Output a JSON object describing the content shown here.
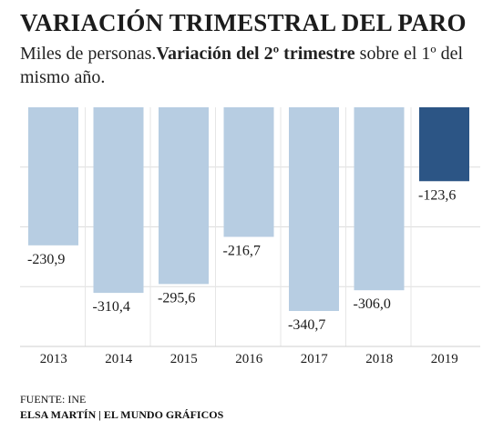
{
  "title": "VARIACIÓN TRIMESTRAL DEL PARO",
  "subtitle": {
    "lead": "Miles de personas.",
    "bold": "Variación del 2º trimestre",
    "rest": " sobre el 1º del mismo año."
  },
  "chart_data": {
    "type": "bar",
    "categories": [
      "2013",
      "2014",
      "2015",
      "2016",
      "2017",
      "2018",
      "2019"
    ],
    "values": [
      -230.9,
      -310.4,
      -295.6,
      -216.7,
      -340.7,
      -306.0,
      -123.6
    ],
    "value_labels": [
      "-230,9",
      "-310,4",
      "-295,6",
      "-216,7",
      "-340,7",
      "-306,0",
      "-123,6"
    ],
    "ylim": [
      -400,
      0
    ],
    "grid": true,
    "colors": {
      "bar": "#b7cde2",
      "highlight": "#2c5585",
      "grid": "#dddddd",
      "separator": "#e6e6e6"
    },
    "highlight_index": 6
  },
  "footer": {
    "source": "FUENTE: INE",
    "author": "ELSA MARTÍN | EL MUNDO GRÁFICOS"
  }
}
